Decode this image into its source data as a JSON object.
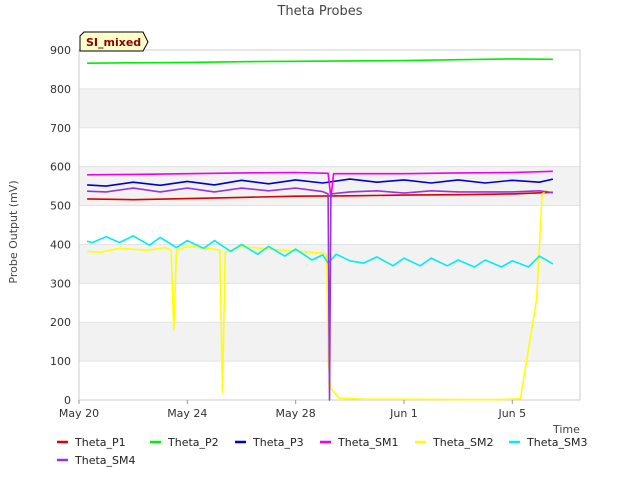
{
  "chart_data": {
    "type": "line",
    "title": "Theta Probes",
    "xlabel": "Time",
    "ylabel": "Probe Output (mV)",
    "badge": "SI_mixed",
    "ylim": [
      0,
      900
    ],
    "yticks": [
      0,
      100,
      200,
      300,
      400,
      500,
      600,
      700,
      800,
      900
    ],
    "xlim": [
      0,
      18.5
    ],
    "xticks": [
      {
        "day": 0,
        "label": "May 20"
      },
      {
        "day": 4,
        "label": "May 24"
      },
      {
        "day": 8,
        "label": "May 28"
      },
      {
        "day": 12,
        "label": "Jun 1"
      },
      {
        "day": 16,
        "label": "Jun 5"
      }
    ],
    "grid": "horizontal-bands",
    "legend_placement": "bottom",
    "series": [
      {
        "name": "Theta_P1",
        "color": "#dd0000",
        "points": [
          [
            0.3,
            517
          ],
          [
            2,
            515
          ],
          [
            4,
            518
          ],
          [
            6,
            521
          ],
          [
            8,
            524
          ],
          [
            10,
            525
          ],
          [
            12,
            527
          ],
          [
            14,
            528
          ],
          [
            16,
            530
          ],
          [
            17.5,
            534
          ]
        ]
      },
      {
        "name": "Theta_P2",
        "color": "#00ee00",
        "points": [
          [
            0.3,
            866
          ],
          [
            2,
            867
          ],
          [
            4,
            868
          ],
          [
            6,
            870
          ],
          [
            8,
            871
          ],
          [
            10,
            872
          ],
          [
            12,
            873
          ],
          [
            14,
            875
          ],
          [
            16,
            877
          ],
          [
            17.5,
            876
          ]
        ]
      },
      {
        "name": "Theta_P3",
        "color": "#0000cc",
        "points": [
          [
            0.3,
            553
          ],
          [
            1,
            550
          ],
          [
            2,
            560
          ],
          [
            3,
            552
          ],
          [
            4,
            562
          ],
          [
            5,
            553
          ],
          [
            6,
            565
          ],
          [
            7,
            556
          ],
          [
            8,
            566
          ],
          [
            9,
            558
          ],
          [
            10,
            568
          ],
          [
            11,
            560
          ],
          [
            12,
            566
          ],
          [
            13,
            558
          ],
          [
            14,
            566
          ],
          [
            15,
            558
          ],
          [
            16,
            565
          ],
          [
            17,
            560
          ],
          [
            17.5,
            568
          ]
        ]
      },
      {
        "name": "Theta_SM1",
        "color": "#ee00ee",
        "points": [
          [
            0.3,
            579
          ],
          [
            2,
            580
          ],
          [
            4,
            582
          ],
          [
            6,
            584
          ],
          [
            8,
            585
          ],
          [
            9.2,
            583
          ],
          [
            9.3,
            520
          ],
          [
            9.4,
            582
          ],
          [
            10,
            582
          ],
          [
            12,
            582
          ],
          [
            14,
            584
          ],
          [
            16,
            585
          ],
          [
            17.5,
            588
          ]
        ]
      },
      {
        "name": "Theta_SM2",
        "color": "#ffff00",
        "points": [
          [
            0.3,
            382
          ],
          [
            0.8,
            380
          ],
          [
            1.5,
            390
          ],
          [
            2.5,
            385
          ],
          [
            3.2,
            392
          ],
          [
            3.4,
            385
          ],
          [
            3.5,
            180
          ],
          [
            3.6,
            385
          ],
          [
            4,
            395
          ],
          [
            5,
            388
          ],
          [
            5.2,
            385
          ],
          [
            5.3,
            20
          ],
          [
            5.4,
            380
          ],
          [
            6,
            395
          ],
          [
            7,
            388
          ],
          [
            8,
            383
          ],
          [
            9,
            378
          ],
          [
            9.15,
            375
          ],
          [
            9.2,
            100
          ],
          [
            9.3,
            30
          ],
          [
            9.6,
            5
          ],
          [
            10.5,
            2
          ],
          [
            12,
            2
          ],
          [
            14,
            1
          ],
          [
            15.5,
            1
          ],
          [
            16.3,
            3
          ],
          [
            16.9,
            260
          ],
          [
            17.1,
            530
          ],
          [
            17.3,
            540
          ]
        ]
      },
      {
        "name": "Theta_SM3",
        "color": "#00eeee",
        "points": [
          [
            0.3,
            408
          ],
          [
            0.5,
            405
          ],
          [
            1,
            420
          ],
          [
            1.5,
            405
          ],
          [
            2,
            422
          ],
          [
            2.6,
            398
          ],
          [
            3,
            418
          ],
          [
            3.6,
            392
          ],
          [
            4,
            410
          ],
          [
            4.6,
            390
          ],
          [
            5,
            410
          ],
          [
            5.6,
            382
          ],
          [
            6,
            400
          ],
          [
            6.6,
            375
          ],
          [
            7,
            395
          ],
          [
            7.6,
            370
          ],
          [
            8,
            388
          ],
          [
            8.6,
            360
          ],
          [
            9,
            373
          ],
          [
            9.2,
            352
          ],
          [
            9.5,
            375
          ],
          [
            10,
            358
          ],
          [
            10.5,
            352
          ],
          [
            11,
            368
          ],
          [
            11.6,
            345
          ],
          [
            12,
            365
          ],
          [
            12.6,
            345
          ],
          [
            13,
            365
          ],
          [
            13.6,
            345
          ],
          [
            14,
            360
          ],
          [
            14.6,
            342
          ],
          [
            15,
            360
          ],
          [
            15.6,
            342
          ],
          [
            16,
            358
          ],
          [
            16.6,
            342
          ],
          [
            17,
            370
          ],
          [
            17.5,
            350
          ]
        ]
      },
      {
        "name": "Theta_SM4",
        "color": "#9933dd",
        "points": [
          [
            0.3,
            537
          ],
          [
            1,
            535
          ],
          [
            2,
            545
          ],
          [
            3,
            535
          ],
          [
            4,
            545
          ],
          [
            5,
            535
          ],
          [
            6,
            545
          ],
          [
            7,
            538
          ],
          [
            8,
            545
          ],
          [
            9,
            536
          ],
          [
            9.2,
            530
          ],
          [
            9.25,
            0
          ],
          [
            9.3,
            530
          ],
          [
            10,
            535
          ],
          [
            11,
            538
          ],
          [
            12,
            532
          ],
          [
            13,
            538
          ],
          [
            14,
            535
          ],
          [
            15,
            535
          ],
          [
            16,
            535
          ],
          [
            17,
            538
          ],
          [
            17.5,
            533
          ]
        ]
      }
    ]
  }
}
